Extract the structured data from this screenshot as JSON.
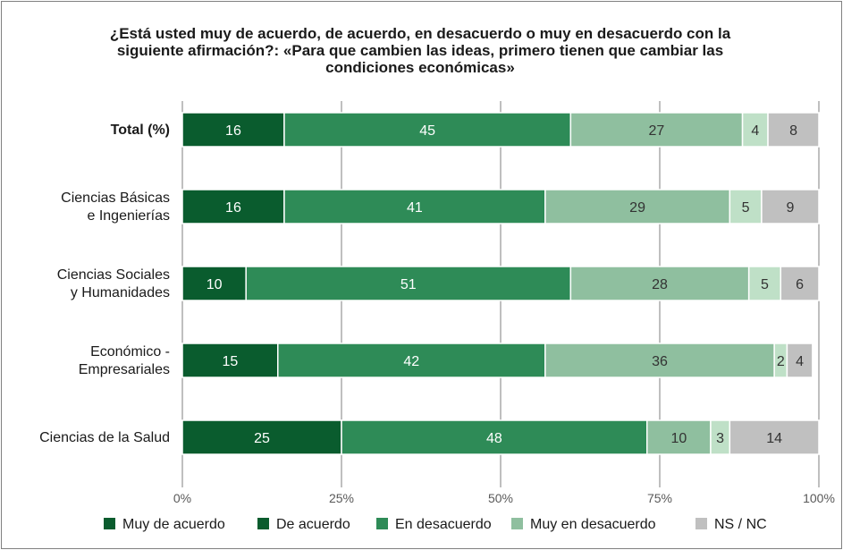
{
  "chart_data": {
    "type": "bar",
    "orientation": "horizontal",
    "stacked": true,
    "title_lines": [
      "¿Está usted muy de acuerdo, de acuerdo, en desacuerdo o muy en desacuerdo con la",
      "siguiente afirmación?: «Para que cambien las ideas, primero tienen que cambiar las",
      "condiciones económicas»"
    ],
    "categories": [
      {
        "label_lines": [
          "Total (%)"
        ],
        "bold": true
      },
      {
        "label_lines": [
          "Ciencias Básicas",
          "e Ingenierías"
        ],
        "bold": false
      },
      {
        "label_lines": [
          "Ciencias Sociales",
          "y Humanidades"
        ],
        "bold": false
      },
      {
        "label_lines": [
          "Económico -",
          "Empresariales"
        ],
        "bold": false
      },
      {
        "label_lines": [
          "Ciencias de la Salud"
        ],
        "bold": false
      }
    ],
    "series": [
      {
        "name": "Muy de acuerdo",
        "color": "#0a5c2e",
        "label_color": "#ffffff",
        "values": [
          16,
          16,
          10,
          15,
          25
        ],
        "segment": true
      },
      {
        "name": "De acuerdo",
        "color": "#0a5c2e",
        "label_color": "#ffffff",
        "values": [
          null,
          null,
          null,
          null,
          null
        ],
        "segment": false
      },
      {
        "name": "En desacuerdo",
        "color": "#2e8b57",
        "label_color": "#ffffff",
        "values": [
          45,
          41,
          51,
          42,
          48
        ],
        "segment": true
      },
      {
        "name": "Muy en desacuerdo",
        "color": "#8fbf9f",
        "label_color": "#333333",
        "values": [
          27,
          29,
          28,
          36,
          10
        ],
        "segment": true
      },
      {
        "name": "",
        "color": "#bfe0c7",
        "label_color": "#333333",
        "values": [
          4,
          5,
          5,
          2,
          3
        ],
        "segment": true
      },
      {
        "name": "NS / NC",
        "color": "#c0c0c0",
        "label_color": "#333333",
        "values": [
          8,
          9,
          6,
          4,
          14
        ],
        "segment": true
      }
    ],
    "xlim": [
      0,
      100
    ],
    "xticks": [
      "0%",
      "25%",
      "50%",
      "75%",
      "100%"
    ],
    "grid": true,
    "legend_position": "bottom"
  }
}
